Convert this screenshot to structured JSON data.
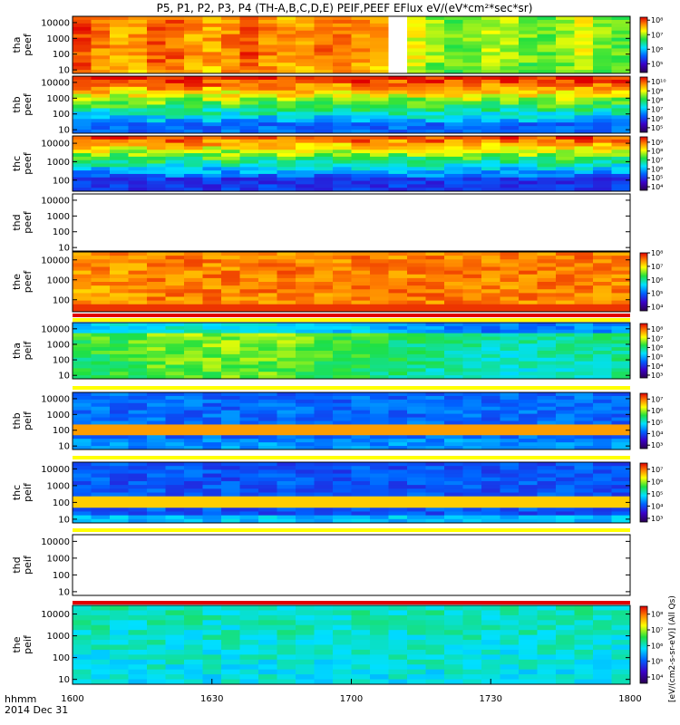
{
  "title": "P5, P1, P2, P3, P4 (TH-A,B,C,D,E) PEIF,PEEF EFlux eV/(eV*cm²*sec*sr)",
  "xaxis": {
    "caption_line1": "hhmm",
    "caption_line2": "2014 Dec 31",
    "ticks": [
      "1600",
      "1630",
      "1700",
      "1730",
      "1800"
    ]
  },
  "colorbar_unit": "[eV/(cm2-s-sr-eV)] (All Qs)",
  "colors": {
    "background": "#ffffff",
    "stripe_yellow": "#ffff00",
    "stripe_red": "#e00000"
  },
  "chart_data": {
    "type": "heatmap",
    "x_range": [
      "1600",
      "1800"
    ],
    "y_scale": "log",
    "colormap": "rainbow",
    "panels": [
      {
        "probe": "tha",
        "species": "peef",
        "label": [
          "tha",
          "peef"
        ],
        "yticks": [
          "10000",
          "1000",
          "100",
          "10"
        ],
        "ylim": [
          6,
          25000
        ],
        "cbar_ticks": [
          "10⁵",
          "10⁶",
          "10⁷",
          "10⁸"
        ],
        "cbar_range": [
          4.4,
          8.2
        ],
        "data_gap": [
          1708,
          1718
        ],
        "dominant_level": "high (red/orange)"
      },
      {
        "probe": "thb",
        "species": "peef",
        "label": [
          "thb",
          "peef"
        ],
        "yticks": [
          "10000",
          "1000",
          "100",
          "10"
        ],
        "ylim": [
          6,
          25000
        ],
        "cbar_ticks": [
          "10⁵",
          "10⁶",
          "10⁷",
          "10⁸",
          "10⁹",
          "10¹⁰"
        ],
        "cbar_range": [
          4.5,
          10.5
        ],
        "dominant_level": "banded"
      },
      {
        "probe": "thc",
        "species": "peef",
        "label": [
          "thc",
          "peef"
        ],
        "yticks": [
          "10000",
          "1000",
          "100"
        ],
        "ylim": [
          25,
          25000
        ],
        "cbar_ticks": [
          "10⁴",
          "10⁵",
          "10⁶",
          "10⁷",
          "10⁸",
          "10⁹"
        ],
        "cbar_range": [
          3.6,
          9.6
        ],
        "dominant_level": "banded"
      },
      {
        "probe": "thd",
        "species": "peef",
        "label": [
          "thd",
          "peef"
        ],
        "yticks": [
          "10000",
          "1000",
          "100",
          "10"
        ],
        "ylim": [
          6,
          25000
        ],
        "empty": true
      },
      {
        "probe": "the",
        "species": "peef",
        "label": [
          "the",
          "peef"
        ],
        "yticks": [
          "10000",
          "1000",
          "100"
        ],
        "ylim": [
          25,
          25000
        ],
        "cbar_ticks": [
          "10⁴",
          "10⁵",
          "10⁶",
          "10⁷",
          "10⁸"
        ],
        "cbar_range": [
          3.7,
          8.0
        ],
        "dominant_level": "high (red/orange)"
      },
      {
        "probe": "tha",
        "species": "peif",
        "label": [
          "tha",
          "peif"
        ],
        "yticks": [
          "10000",
          "1000",
          "100",
          "10"
        ],
        "ylim": [
          6,
          25000
        ],
        "cbar_ticks": [
          "10³",
          "10⁴",
          "10⁵",
          "10⁶",
          "10⁷",
          "10⁸"
        ],
        "cbar_range": [
          2.7,
          8.6
        ],
        "dominant_level": "mid (green)"
      },
      {
        "probe": "thb",
        "species": "peif",
        "label": [
          "thb",
          "peif"
        ],
        "yticks": [
          "10000",
          "1000",
          "100",
          "10"
        ],
        "ylim": [
          6,
          25000
        ],
        "cbar_ticks": [
          "10³",
          "10⁴",
          "10⁵",
          "10⁶",
          "10⁷"
        ],
        "cbar_range": [
          2.7,
          7.5
        ],
        "dominant_level": "banded"
      },
      {
        "probe": "thc",
        "species": "peif",
        "label": [
          "thc",
          "peif"
        ],
        "yticks": [
          "10000",
          "1000",
          "100",
          "10"
        ],
        "ylim": [
          6,
          25000
        ],
        "cbar_ticks": [
          "10³",
          "10⁴",
          "10⁵",
          "10⁶",
          "10⁷"
        ],
        "cbar_range": [
          2.7,
          7.5
        ],
        "dominant_level": "banded"
      },
      {
        "probe": "thd",
        "species": "peif",
        "label": [
          "thd",
          "peif"
        ],
        "yticks": [
          "10000",
          "1000",
          "100",
          "10"
        ],
        "ylim": [
          6,
          25000
        ],
        "empty": true
      },
      {
        "probe": "the",
        "species": "peif",
        "label": [
          "the",
          "peif"
        ],
        "yticks": [
          "10000",
          "1000",
          "100",
          "10"
        ],
        "ylim": [
          6,
          25000
        ],
        "cbar_ticks": [
          "10⁴",
          "10⁵",
          "10⁶",
          "10⁷",
          "10⁸"
        ],
        "cbar_range": [
          3.6,
          8.5
        ],
        "dominant_level": "low (cyan/green)"
      }
    ]
  }
}
